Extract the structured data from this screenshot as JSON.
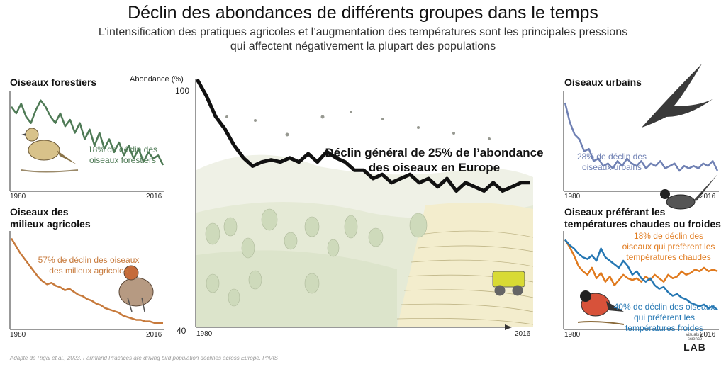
{
  "header": {
    "title": "Déclin des abondances de différents groupes dans le temps",
    "subtitle_line1": "L’intensification des pratiques agricoles et l’augmentation des températures sont les principales pressions",
    "subtitle_line2": "qui affectent négativement la plupart des populations"
  },
  "source": "Adapté de Rigal et al., 2023. Farmland Practices are driving bird population declines across Europe. PNAS",
  "logo": {
    "small_text": "visuals in science",
    "lab_text": "LAB"
  },
  "colors": {
    "forest": "#4e7a55",
    "farm": "#c77a3c",
    "urban": "#6f80b3",
    "warm": "#e07a1e",
    "cold": "#2577b3",
    "main": "#111111"
  },
  "chart_data": [
    {
      "type": "line",
      "id": "main",
      "title": "",
      "ylabel": "Abondance (%)",
      "ylim": [
        40,
        100
      ],
      "ytick_labels": [
        "100",
        "40"
      ],
      "x_labels": [
        "1980",
        "2016"
      ],
      "annotation_line1": "Déclin général de 25% de l’abondance",
      "annotation_line2": "des oiseaux en Europe",
      "x": [
        1980,
        1981,
        1982,
        1983,
        1984,
        1985,
        1986,
        1987,
        1988,
        1989,
        1990,
        1991,
        1992,
        1993,
        1994,
        1995,
        1996,
        1997,
        1998,
        1999,
        2000,
        2001,
        2002,
        2003,
        2004,
        2005,
        2006,
        2007,
        2008,
        2009,
        2010,
        2011,
        2012,
        2013,
        2014,
        2015,
        2016
      ],
      "values": [
        100,
        96,
        91,
        88,
        84,
        81,
        79,
        80,
        80.5,
        80,
        81,
        80,
        82,
        80,
        82.5,
        81,
        80,
        78,
        78,
        76,
        77,
        75,
        76,
        77,
        75,
        76,
        74,
        76,
        73,
        75,
        74,
        73,
        75,
        73,
        74,
        75,
        75
      ]
    },
    {
      "type": "line",
      "id": "forest",
      "title": "Oiseaux forestiers",
      "annotation_line1": "18% de déclin des",
      "annotation_line2": "oiseaux forestiers",
      "x_labels": [
        "1980",
        "2016"
      ],
      "ylim": [
        75,
        105
      ],
      "values": [
        100,
        98,
        101,
        97,
        95,
        99,
        102,
        100,
        97,
        95,
        98,
        94,
        96,
        92,
        95,
        90,
        93,
        88,
        92,
        87,
        90,
        86,
        89,
        85,
        88,
        84,
        87,
        83,
        86,
        84,
        85,
        82
      ]
    },
    {
      "type": "line",
      "id": "farm",
      "title": "Oiseaux des milieux agricoles",
      "title_line1": "Oiseaux des",
      "title_line2": "milieux agricoles",
      "annotation_line1": "57% de déclin des oiseaux",
      "annotation_line2": "des milieux agricoles",
      "x_labels": [
        "1980",
        "2016"
      ],
      "ylim": [
        40,
        105
      ],
      "values": [
        100,
        95,
        90,
        86,
        82,
        78,
        74,
        71,
        69,
        70,
        68,
        67,
        65,
        66,
        64,
        62,
        61,
        59,
        58,
        56,
        55,
        53,
        52,
        51,
        50,
        48,
        47,
        46,
        45,
        45,
        44,
        44,
        43,
        43,
        43
      ]
    },
    {
      "type": "line",
      "id": "urban",
      "title": "Oiseaux urbains",
      "annotation_line1": "28% de déclin des",
      "annotation_line2": "oiseaux urbains",
      "x_labels": [
        "1980",
        "2016"
      ],
      "ylim": [
        65,
        105
      ],
      "values": [
        100,
        92,
        87,
        85,
        80,
        81,
        76,
        77,
        74,
        75,
        73,
        76,
        74,
        77,
        75,
        74,
        76,
        73,
        75,
        74,
        76,
        73,
        74,
        75,
        72,
        74,
        73,
        74,
        73,
        75,
        74,
        76,
        72
      ]
    },
    {
      "type": "line",
      "id": "temperature",
      "title": "Oiseaux préférant les températures chaudes ou froides",
      "title_line1": "Oiseaux préférant les",
      "title_line2": "températures chaudes ou froides",
      "x_labels": [
        "1980",
        "2016"
      ],
      "ylim": [
        50,
        105
      ],
      "series": [
        {
          "name": "chaudes",
          "annotation_line1": "18% de déclin des",
          "annotation_line2": "oiseaux qui préfèrent les",
          "annotation_line3": "températures chaudes",
          "values": [
            100,
            96,
            91,
            85,
            82,
            80,
            84,
            78,
            81,
            76,
            79,
            74,
            77,
            80,
            78,
            77,
            78,
            76,
            79,
            77,
            80,
            78,
            76,
            80,
            78,
            79,
            82,
            80,
            81,
            83,
            82,
            84,
            82,
            83,
            82
          ]
        },
        {
          "name": "froides",
          "annotation_line1": "40% de déclin des oiseaux",
          "annotation_line2": "qui préfèrent les",
          "annotation_line3": "températures froides",
          "values": [
            100,
            97,
            95,
            92,
            90,
            89,
            91,
            88,
            95,
            90,
            88,
            86,
            84,
            88,
            85,
            80,
            82,
            78,
            76,
            78,
            74,
            72,
            73,
            70,
            68,
            69,
            67,
            66,
            64,
            63,
            62,
            63,
            61,
            62,
            60
          ]
        }
      ]
    }
  ]
}
